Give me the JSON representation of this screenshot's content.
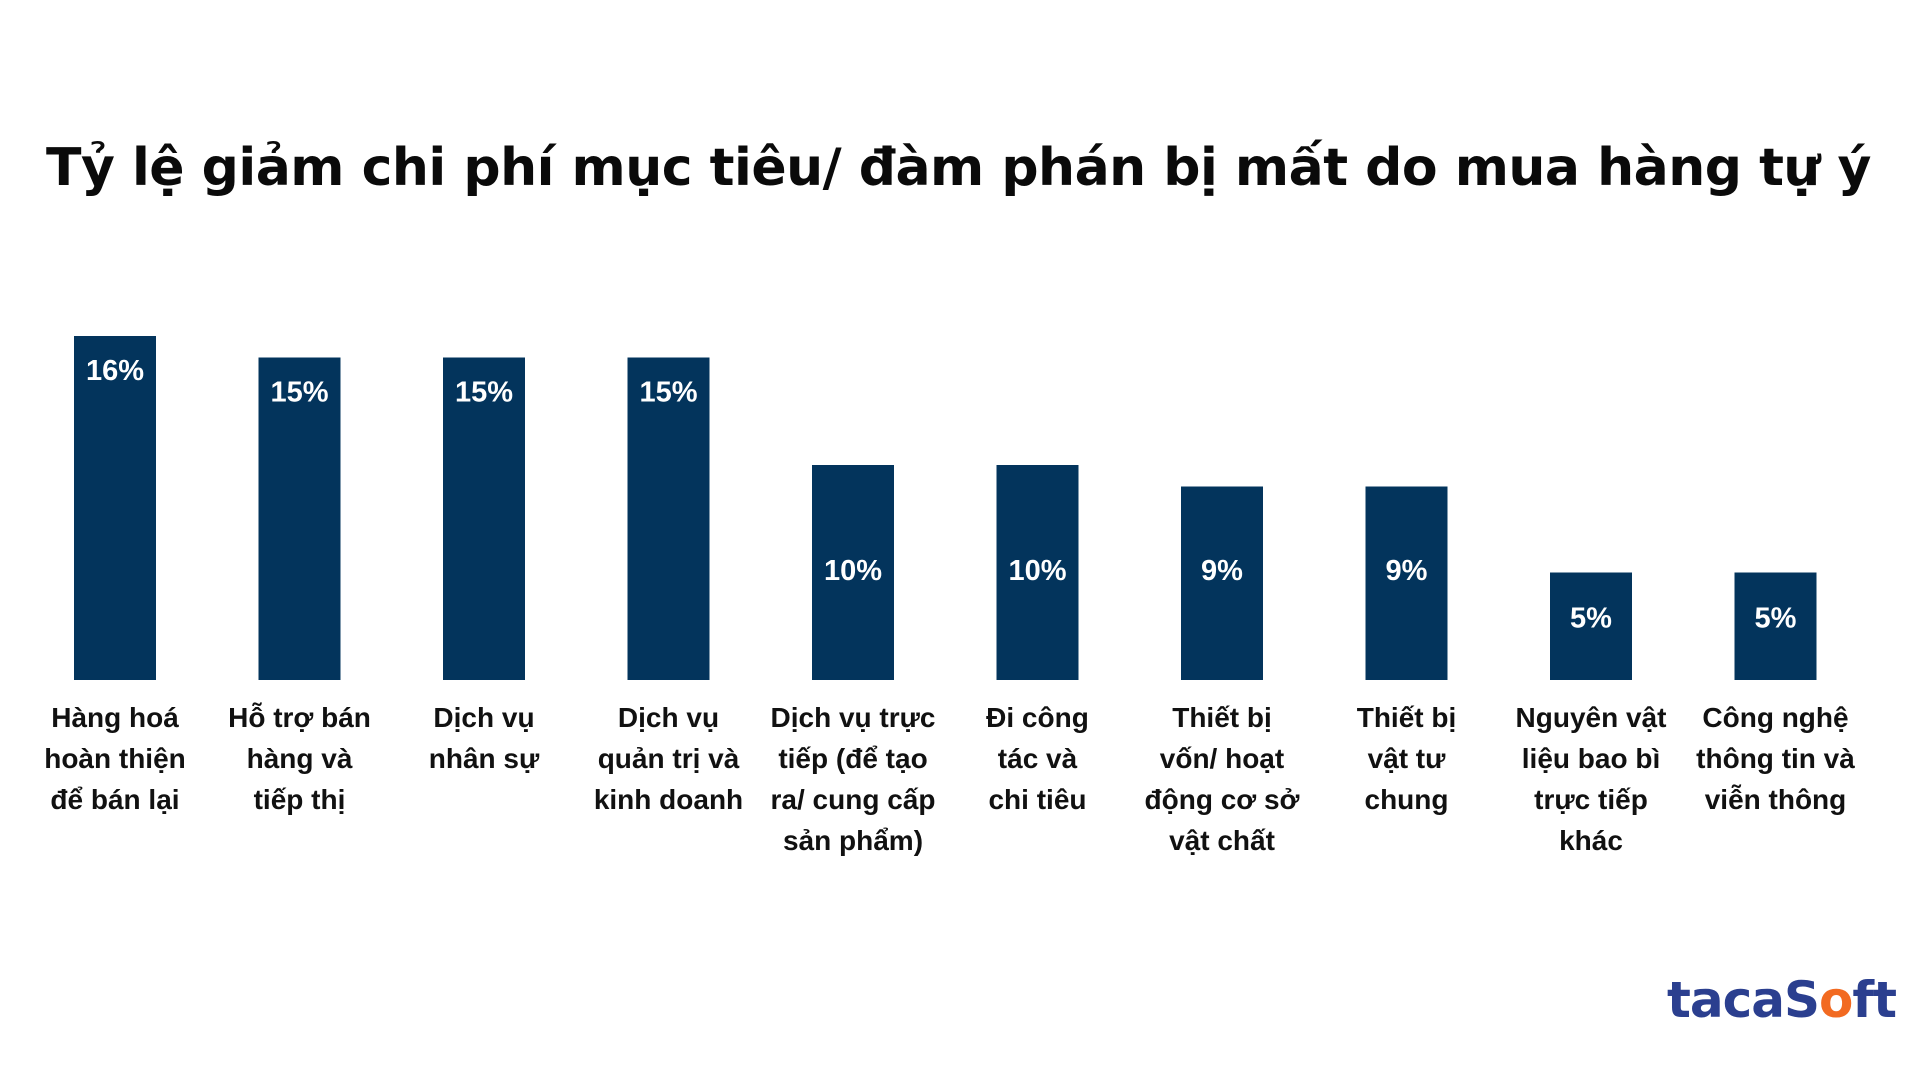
{
  "title": "Tỷ lệ giảm chi phí mục tiêu/ đàm phán bị mất do mua hàng tự ý",
  "logo": {
    "part1": "tacaS",
    "part2": "o",
    "part3": "ft",
    "text": "tacaSoft",
    "colors": {
      "primary": "#2b3f8f",
      "accent": "#f26a21"
    }
  },
  "colors": {
    "bar": "#03345c",
    "label_inside": "#ffffff",
    "text": "#111111"
  },
  "chart_data": {
    "type": "bar",
    "title": "Tỷ lệ giảm chi phí mục tiêu/ đàm phán bị mất do mua hàng tự ý",
    "xlabel": "",
    "ylabel": "",
    "grid": false,
    "legend": "none",
    "unit": "%",
    "ylim": [
      0,
      16
    ],
    "categories": [
      [
        "Hàng hoá",
        "hoàn thiện",
        "để bán lại"
      ],
      [
        "Hỗ trợ bán",
        "hàng và",
        "tiếp thị"
      ],
      [
        "Dịch vụ",
        "nhân sự"
      ],
      [
        "Dịch vụ",
        "quản trị và",
        "kinh doanh"
      ],
      [
        "Dịch vụ trực",
        "tiếp (để tạo",
        "ra/ cung cấp",
        "sản phẩm)"
      ],
      [
        "Đi công",
        "tác và",
        "chi tiêu"
      ],
      [
        "Thiết bị",
        "vốn/ hoạt",
        "động cơ sở",
        "vật chất"
      ],
      [
        "Thiết bị",
        "vật tư",
        "chung"
      ],
      [
        "Nguyên vật",
        "liệu bao bì",
        "trực tiếp",
        "khác"
      ],
      [
        "Công nghệ",
        "thông tin và",
        "viễn thông"
      ]
    ],
    "values": [
      16,
      15,
      15,
      15,
      10,
      10,
      9,
      9,
      5,
      5
    ],
    "data_labels": [
      "16%",
      "15%",
      "15%",
      "15%",
      "10%",
      "10%",
      "9%",
      "9%",
      "5%",
      "5%"
    ]
  }
}
